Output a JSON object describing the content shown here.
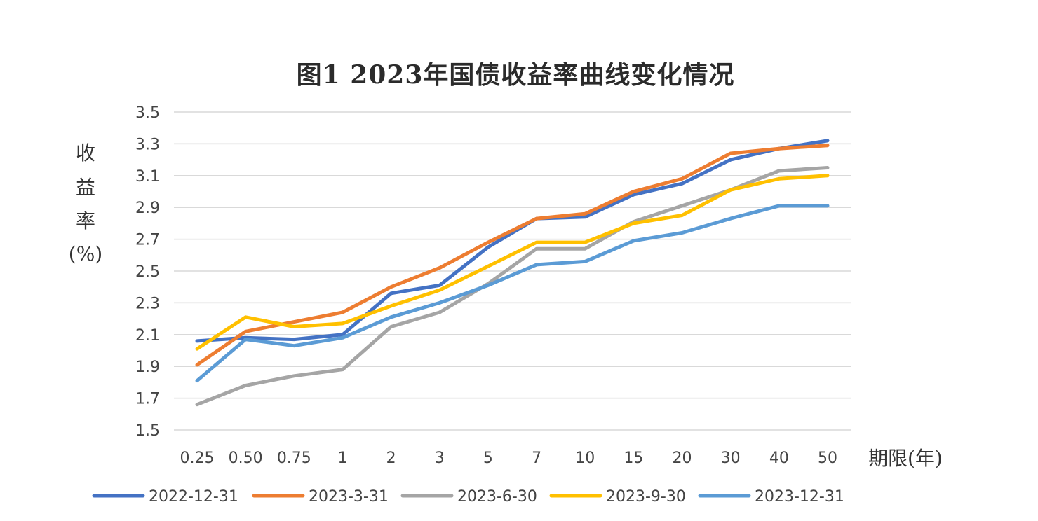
{
  "chart_data": {
    "type": "line",
    "title": "图1 2023年国债收益率曲线变化情况",
    "xlabel": "期限(年)",
    "ylabel": "收益率(%)",
    "ylabel_chars": [
      "收",
      "益",
      "率",
      "(%)"
    ],
    "categories": [
      "0.25",
      "0.50",
      "0.75",
      "1",
      "2",
      "3",
      "5",
      "7",
      "10",
      "15",
      "20",
      "30",
      "40",
      "50"
    ],
    "ylim": [
      1.5,
      3.5
    ],
    "yticks": [
      "3.5",
      "3.3",
      "3.1",
      "2.9",
      "2.7",
      "2.5",
      "2.3",
      "2.1",
      "1.9",
      "1.7",
      "1.5"
    ],
    "grid": true,
    "legend_position": "bottom",
    "series": [
      {
        "name": "2022-12-31",
        "color": "#4472C4",
        "values": [
          2.06,
          2.08,
          2.07,
          2.1,
          2.36,
          2.41,
          2.65,
          2.83,
          2.84,
          2.98,
          3.05,
          3.2,
          3.27,
          3.32
        ]
      },
      {
        "name": "2023-3-31",
        "color": "#ED7D31",
        "values": [
          1.91,
          2.12,
          2.18,
          2.24,
          2.4,
          2.52,
          2.68,
          2.83,
          2.86,
          3.0,
          3.08,
          3.24,
          3.27,
          3.29
        ]
      },
      {
        "name": "2023-6-30",
        "color": "#A5A5A5",
        "values": [
          1.66,
          1.78,
          1.84,
          1.88,
          2.15,
          2.24,
          2.42,
          2.64,
          2.64,
          2.81,
          2.91,
          3.01,
          3.13,
          3.15
        ]
      },
      {
        "name": "2023-9-30",
        "color": "#FFC000",
        "values": [
          2.01,
          2.21,
          2.15,
          2.17,
          2.28,
          2.38,
          2.53,
          2.68,
          2.68,
          2.8,
          2.85,
          3.01,
          3.08,
          3.1
        ]
      },
      {
        "name": "2023-12-31",
        "color": "#5B9BD5",
        "values": [
          1.81,
          2.07,
          2.03,
          2.08,
          2.21,
          2.3,
          2.41,
          2.54,
          2.56,
          2.69,
          2.74,
          2.83,
          2.91,
          2.91
        ]
      }
    ]
  }
}
